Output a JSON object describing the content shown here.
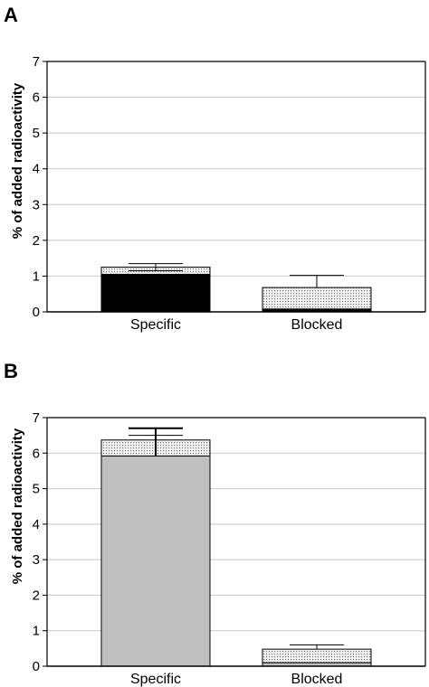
{
  "panels": [
    {
      "letter": "A",
      "chart_data": {
        "type": "bar",
        "stacked": true,
        "categories": [
          "Specific",
          "Blocked"
        ],
        "series": [
          {
            "values": [
              1.05,
              0.08
            ],
            "color": "#000000",
            "fill_style": "solid"
          },
          {
            "values": [
              0.2,
              0.6
            ],
            "color": "#d8d8d8",
            "fill_style": "dotted"
          }
        ],
        "totals": [
          1.25,
          0.68
        ],
        "error_bars": {
          "Specific": {
            "upper": 1.35,
            "lower": 1.15
          },
          "Blocked": {
            "upper": 1.02
          }
        },
        "ylabel": "% of added radioactivity",
        "ylim": [
          0,
          7
        ],
        "yticks": [
          0,
          1,
          2,
          3,
          4,
          5,
          6,
          7
        ],
        "grid": true
      }
    },
    {
      "letter": "B",
      "chart_data": {
        "type": "bar",
        "stacked": true,
        "categories": [
          "Specific",
          "Blocked"
        ],
        "series": [
          {
            "values": [
              5.92,
              0.1
            ],
            "color": "#c0c0c0",
            "fill_style": "solid"
          },
          {
            "values": [
              0.45,
              0.38
            ],
            "color": "#e0e0e0",
            "fill_style": "dotted"
          }
        ],
        "totals": [
          6.37,
          0.48
        ],
        "error_bars": {
          "Specific": {
            "upper": 6.7,
            "lower": 5.92,
            "inner": 6.5
          },
          "Blocked": {
            "upper": 0.6
          }
        },
        "ylabel": "% of added radioactivity",
        "ylim": [
          0,
          7
        ],
        "yticks": [
          0,
          1,
          2,
          3,
          4,
          5,
          6,
          7
        ],
        "grid": true
      }
    }
  ]
}
